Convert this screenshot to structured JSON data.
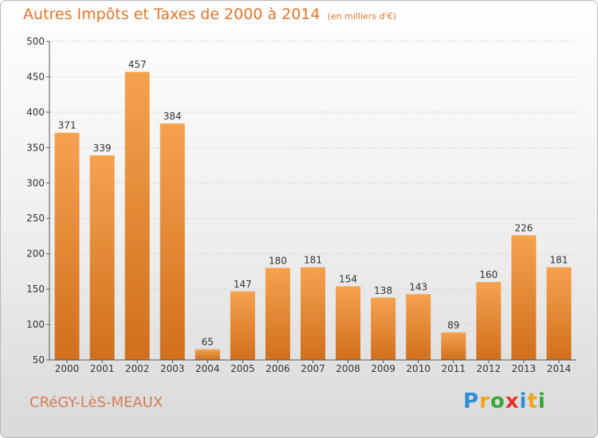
{
  "chart_data": {
    "type": "bar",
    "title": "Autres Impôts et Taxes de 2000 à 2014",
    "subtitle": "(en milliers d'€)",
    "categories": [
      "2000",
      "2001",
      "2002",
      "2003",
      "2004",
      "2005",
      "2006",
      "2007",
      "2008",
      "2009",
      "2010",
      "2011",
      "2012",
      "2013",
      "2014"
    ],
    "values": [
      371,
      339,
      457,
      384,
      65,
      147,
      180,
      181,
      154,
      138,
      143,
      89,
      160,
      226,
      181
    ],
    "ylim": [
      50,
      500
    ],
    "yticks": [
      50,
      100,
      150,
      200,
      250,
      300,
      350,
      400,
      450,
      500
    ],
    "grid": true,
    "bar_color_top": "#f5a24e",
    "bar_color_bottom": "#d06f1e"
  },
  "footer": {
    "commune": "CRéGY-LèS-MEAUX",
    "logo": [
      "P",
      "r",
      "o",
      "x",
      "i",
      "t",
      "i"
    ],
    "logo_colors": [
      "#2e8fd6",
      "#f2a31b",
      "#38a838",
      "#e8342a",
      "#2e8fd6",
      "#f2a31b",
      "#38a838"
    ]
  }
}
